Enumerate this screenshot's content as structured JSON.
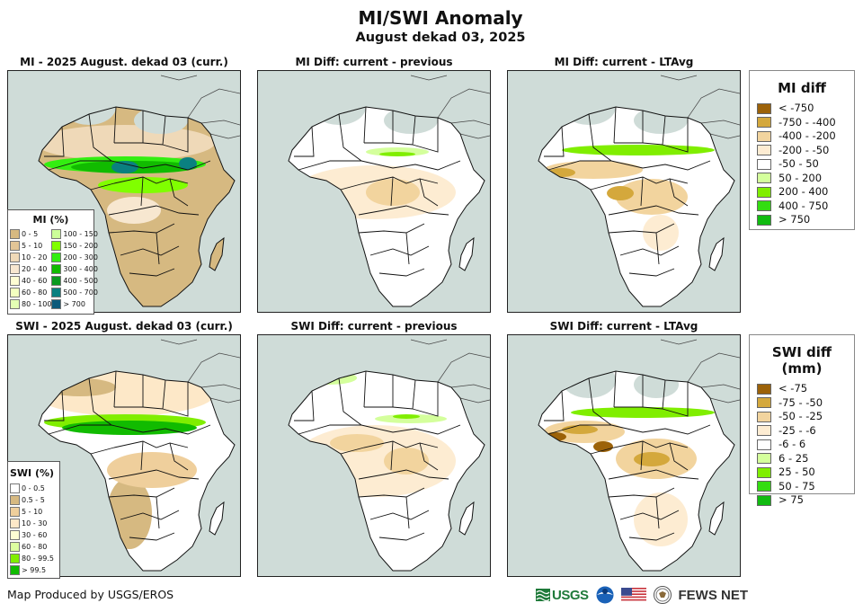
{
  "header": {
    "title": "MI/SWI Anomaly",
    "subtitle": "August dekad 03, 2025"
  },
  "panels": [
    {
      "title": "MI - 2025 August. dekad 03 (curr.)",
      "variable": "MI",
      "kind": "current"
    },
    {
      "title": "MI Diff: current - previous",
      "variable": "MI",
      "kind": "diff-previous"
    },
    {
      "title": "MI Diff: current - LTAvg",
      "variable": "MI",
      "kind": "diff-ltavg"
    },
    {
      "title": "SWI - 2025 August. dekad 03 (curr.)",
      "variable": "SWI",
      "kind": "current"
    },
    {
      "title": "SWI Diff: current - previous",
      "variable": "SWI",
      "kind": "diff-previous"
    },
    {
      "title": "SWI Diff: current - LTAvg",
      "variable": "SWI",
      "kind": "diff-ltavg"
    }
  ],
  "mi_legend": {
    "title": "MI (%)",
    "items": [
      {
        "label": "0 - 5",
        "color": "#d6b981"
      },
      {
        "label": "5 - 10",
        "color": "#e2c596"
      },
      {
        "label": "10 - 20",
        "color": "#efd9b8"
      },
      {
        "label": "20 - 40",
        "color": "#f7e7d0"
      },
      {
        "label": "40 - 60",
        "color": "#fdfdd3"
      },
      {
        "label": "60 - 80",
        "color": "#f3ffc0"
      },
      {
        "label": "80 - 100",
        "color": "#e4ffb4"
      },
      {
        "label": "100 - 150",
        "color": "#ccff99"
      },
      {
        "label": "150 - 200",
        "color": "#80ff00"
      },
      {
        "label": "200 - 300",
        "color": "#33ee11"
      },
      {
        "label": "300 - 400",
        "color": "#11bb00"
      },
      {
        "label": "400 - 500",
        "color": "#0a9a20"
      },
      {
        "label": "500 - 700",
        "color": "#0a8080"
      },
      {
        "label": "> 700",
        "color": "#0c5a7a"
      }
    ]
  },
  "swi_legend": {
    "title": "SWI (%)",
    "items": [
      {
        "label": "0 - 0.5",
        "color": "#ffffff"
      },
      {
        "label": "0.5 - 5",
        "color": "#d6b981"
      },
      {
        "label": "5 - 10",
        "color": "#efcf9c"
      },
      {
        "label": "10 - 30",
        "color": "#fde8c8"
      },
      {
        "label": "30 - 60",
        "color": "#fdfdd3"
      },
      {
        "label": "60 - 80",
        "color": "#ddffa0"
      },
      {
        "label": "80 - 99.5",
        "color": "#80ee00"
      },
      {
        "label": "> 99.5",
        "color": "#11bb00"
      }
    ]
  },
  "mi_diff_legend": {
    "title": "MI diff",
    "items": [
      {
        "label": "< -750",
        "color": "#9c6209"
      },
      {
        "label": "-750 - -400",
        "color": "#d4a83c"
      },
      {
        "label": "-400 - -200",
        "color": "#f2d49e"
      },
      {
        "label": "-200 - -50",
        "color": "#fdecd2"
      },
      {
        "label": "-50 - 50",
        "color": "#ffffff"
      },
      {
        "label": "50 - 200",
        "color": "#d4ff9c"
      },
      {
        "label": "200 - 400",
        "color": "#80ee00"
      },
      {
        "label": "400 - 750",
        "color": "#33dd11"
      },
      {
        "label": "> 750",
        "color": "#11bb11"
      }
    ]
  },
  "swi_diff_legend": {
    "title": "SWI diff (mm)",
    "items": [
      {
        "label": "< -75",
        "color": "#9c6209"
      },
      {
        "label": "-75 - -50",
        "color": "#d4a83c"
      },
      {
        "label": "-50 - -25",
        "color": "#f2d49e"
      },
      {
        "label": "-25 - -6",
        "color": "#fdecd2"
      },
      {
        "label": "-6 - 6",
        "color": "#ffffff"
      },
      {
        "label": "6 - 25",
        "color": "#d4ff9c"
      },
      {
        "label": "25 - 50",
        "color": "#80ee00"
      },
      {
        "label": "50 - 75",
        "color": "#33dd11"
      },
      {
        "label": "> 75",
        "color": "#11bb11"
      }
    ]
  },
  "map_colors": {
    "ocean": "#cfdcd8",
    "no_data_land": "#cfdcd8",
    "border": "#111111"
  },
  "footer": {
    "credit": "Map Produced by USGS/EROS",
    "logos": [
      {
        "name": "usgs-logo",
        "text": "USGS"
      },
      {
        "name": "noaa-logo",
        "text": ""
      },
      {
        "name": "us-flag-logo",
        "text": ""
      },
      {
        "name": "state-dept-seal-logo",
        "text": ""
      },
      {
        "name": "fews-net-logo",
        "text": "FEWS NET"
      }
    ]
  }
}
